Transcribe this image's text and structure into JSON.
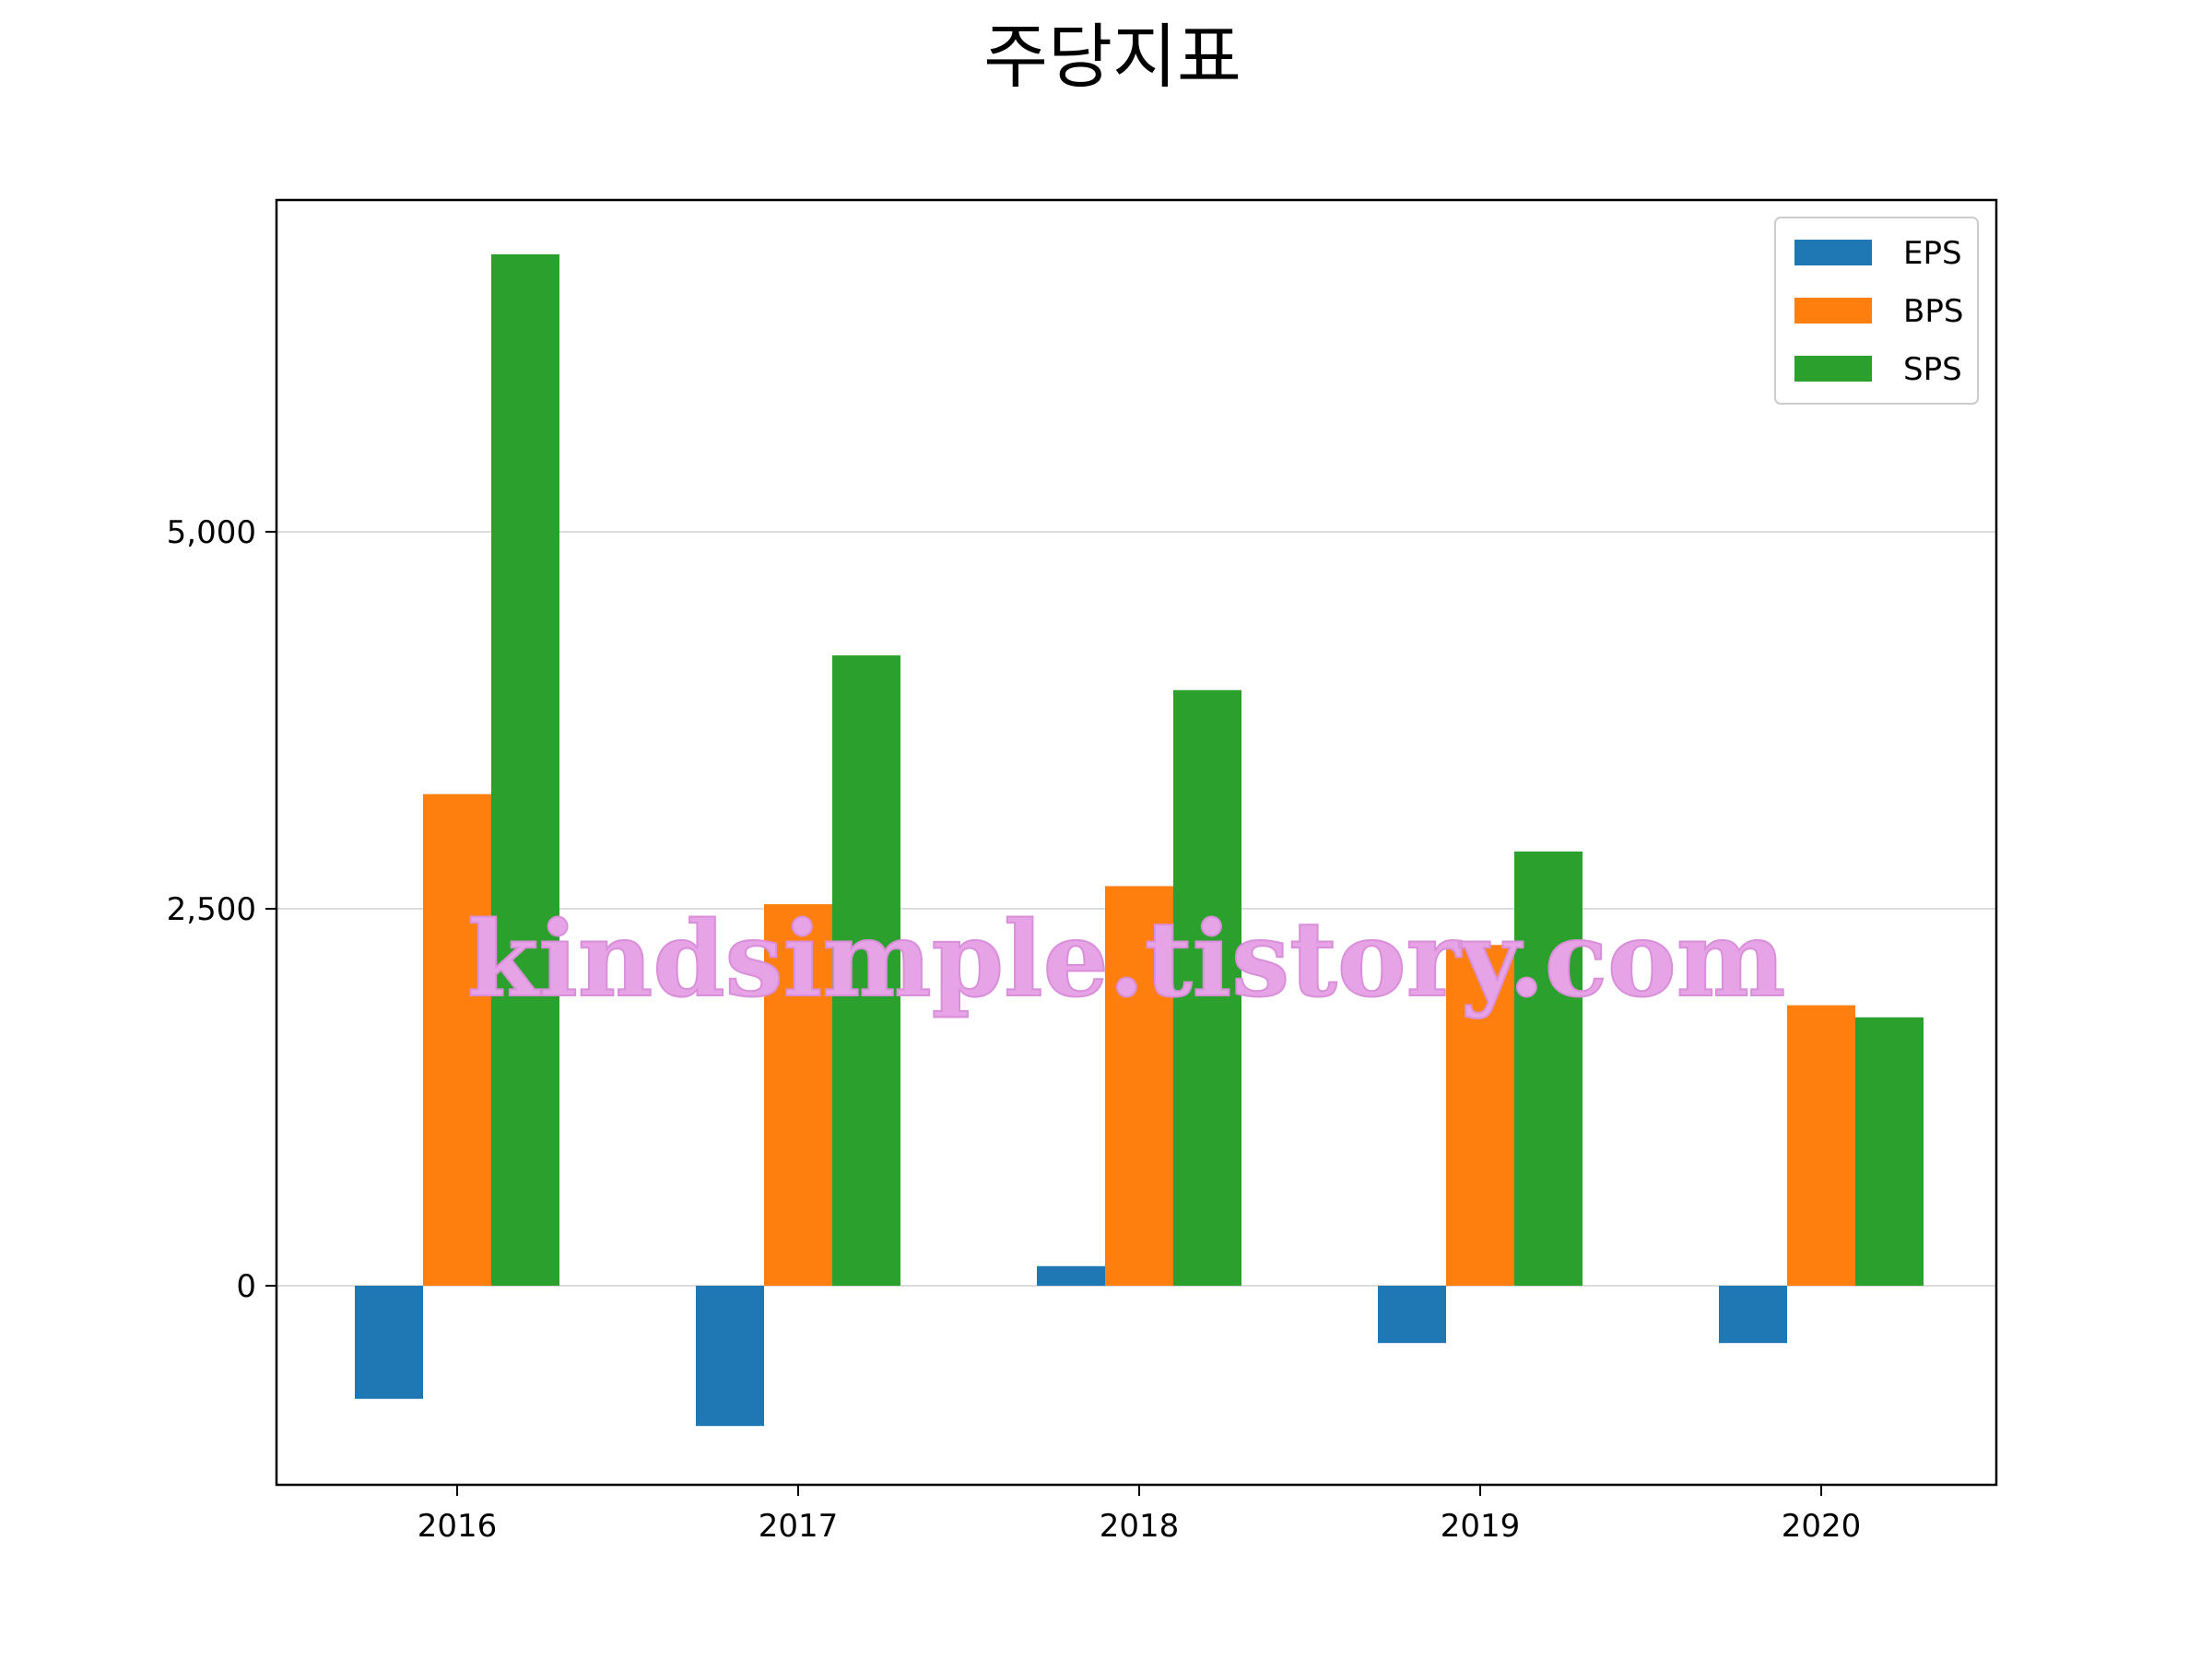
{
  "chart_data": {
    "type": "bar",
    "title": "주당지표",
    "categories": [
      "2016",
      "2017",
      "2018",
      "2019",
      "2020"
    ],
    "series": [
      {
        "name": "EPS",
        "color": "#1f77b4",
        "values": [
          -750,
          -930,
          130,
          -380,
          -380
        ]
      },
      {
        "name": "BPS",
        "color": "#ff7f0e",
        "values": [
          3260,
          2530,
          2650,
          2260,
          1860
        ]
      },
      {
        "name": "SPS",
        "color": "#2ca02c",
        "values": [
          6840,
          4180,
          3950,
          2880,
          1780
        ]
      }
    ],
    "ylim": [
      -1320,
      7200
    ],
    "yticks": [
      0,
      2500,
      5000
    ],
    "ytick_labels": [
      "0",
      "2,500",
      "5,000"
    ],
    "grid": "y",
    "legend_position": "top-right",
    "xlabel": "",
    "ylabel": ""
  },
  "watermark": "kindsimple.tistory.com"
}
